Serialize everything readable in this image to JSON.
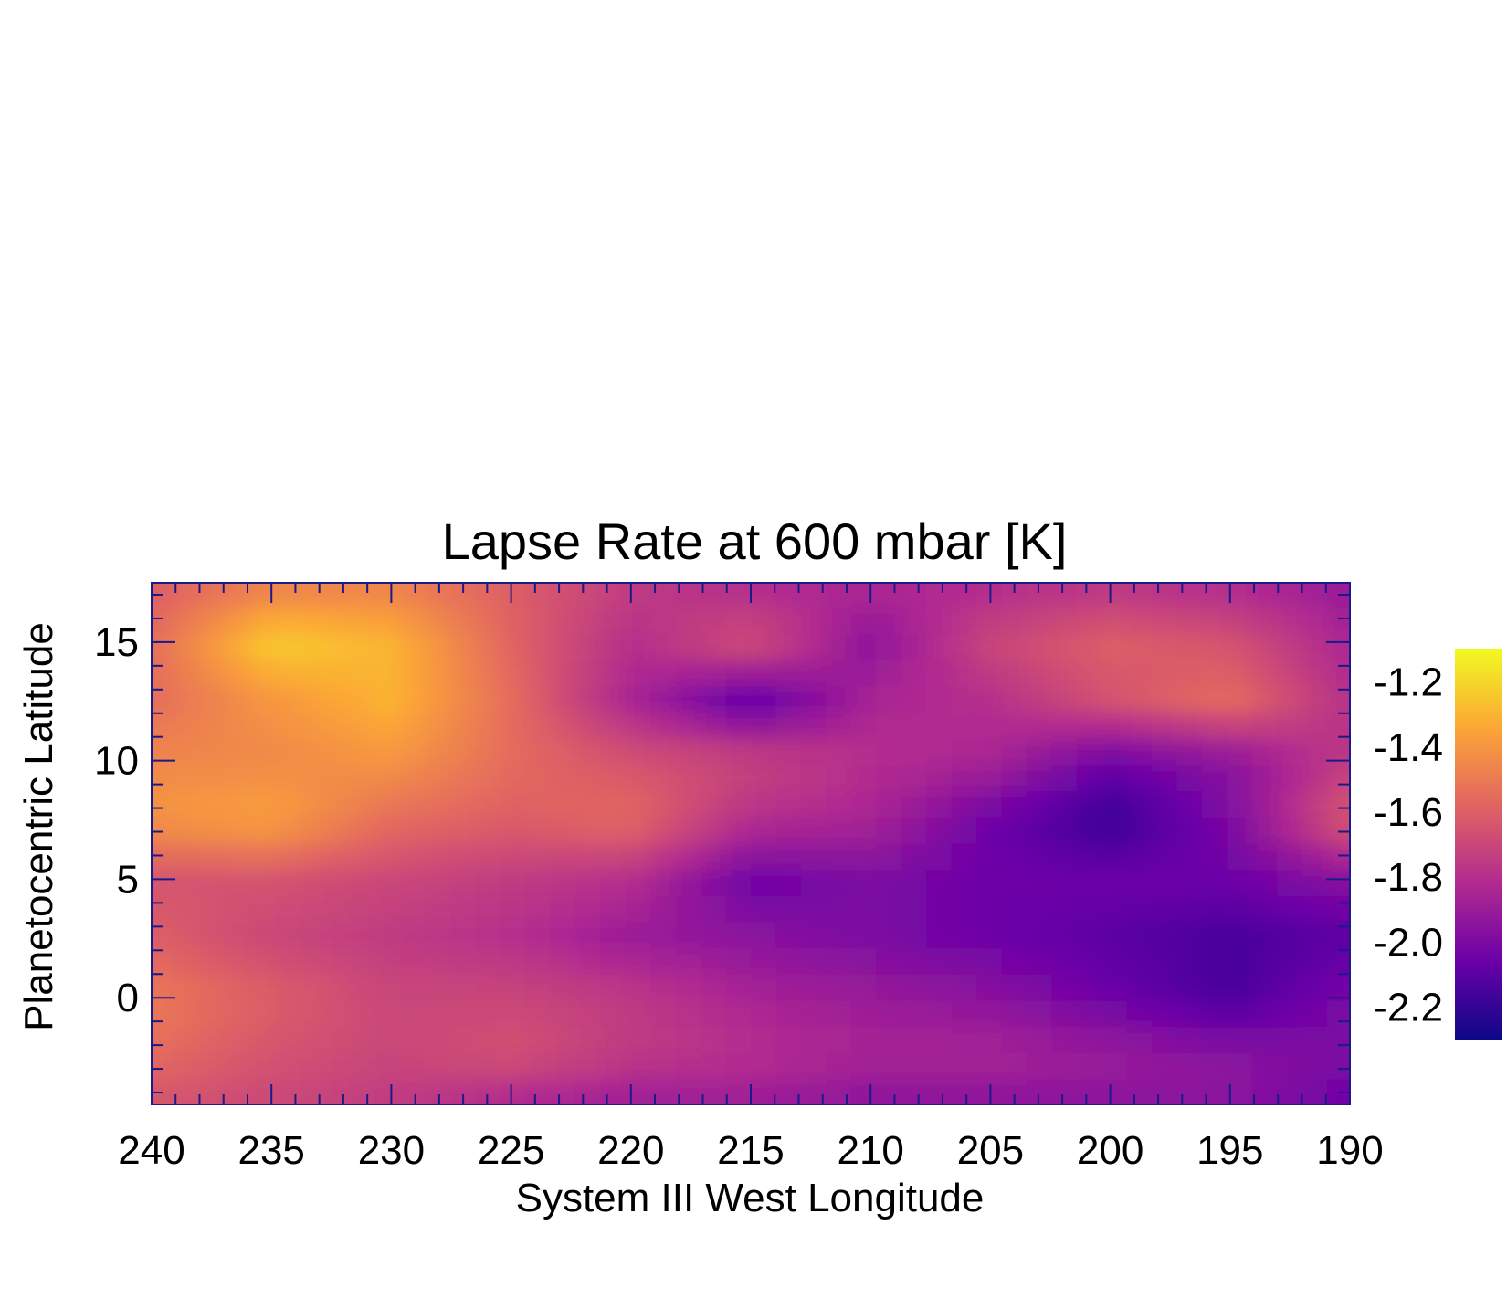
{
  "chart_data": {
    "type": "heatmap",
    "title": "Lapse Rate at 600 mbar [K]",
    "xlabel": "System III West Longitude",
    "ylabel": "Planetocentric Latitude",
    "xlim": [
      240,
      190
    ],
    "ylim": [
      -4.5,
      17.5
    ],
    "x_ticks": [
      240,
      235,
      230,
      225,
      220,
      215,
      210,
      205,
      200,
      195,
      190
    ],
    "x_tick_labels": [
      "240",
      "235",
      "230",
      "225",
      "220",
      "215",
      "210",
      "205",
      "200",
      "195",
      "190"
    ],
    "y_ticks": [
      0,
      5,
      10,
      15
    ],
    "y_tick_labels": [
      "0",
      "5",
      "10",
      "15"
    ],
    "colorbar": {
      "range": [
        -2.3,
        -1.1
      ],
      "ticks": [
        -1.2,
        -1.4,
        -1.6,
        -1.8,
        -2.0,
        -2.2
      ],
      "tick_labels": [
        "-1.2",
        "-1.4",
        "-1.6",
        "-1.8",
        "-2.0",
        "-2.2"
      ],
      "colormap": "plasma-like",
      "colors": [
        "#0d0887",
        "#6a00a8",
        "#b12a90",
        "#e16462",
        "#fca636",
        "#f0f921"
      ]
    },
    "grid": false,
    "x": [
      240,
      235,
      230,
      225,
      220,
      215,
      210,
      205,
      200,
      195,
      190
    ],
    "y": [
      17,
      15,
      12.5,
      10,
      7.5,
      5,
      2.5,
      0,
      -2.5,
      -4.5
    ],
    "z": [
      [
        -1.6,
        -1.45,
        -1.45,
        -1.6,
        -1.75,
        -1.8,
        -1.85,
        -1.8,
        -1.75,
        -1.8,
        -1.9
      ],
      [
        -1.55,
        -1.22,
        -1.3,
        -1.58,
        -1.8,
        -1.65,
        -1.95,
        -1.7,
        -1.6,
        -1.65,
        -1.85
      ],
      [
        -1.55,
        -1.4,
        -1.3,
        -1.55,
        -1.85,
        -2.1,
        -1.85,
        -1.8,
        -1.65,
        -1.55,
        -1.8
      ],
      [
        -1.45,
        -1.45,
        -1.4,
        -1.55,
        -1.65,
        -1.7,
        -1.8,
        -1.85,
        -2.05,
        -1.95,
        -1.75
      ],
      [
        -1.4,
        -1.35,
        -1.55,
        -1.6,
        -1.55,
        -1.8,
        -1.85,
        -2.05,
        -2.2,
        -2.0,
        -1.6
      ],
      [
        -1.65,
        -1.65,
        -1.7,
        -1.75,
        -1.8,
        -2.05,
        -2.0,
        -2.05,
        -2.05,
        -2.05,
        -1.95
      ],
      [
        -1.6,
        -1.7,
        -1.75,
        -1.8,
        -1.9,
        -1.95,
        -2.0,
        -2.05,
        -2.1,
        -2.15,
        -2.1
      ],
      [
        -1.5,
        -1.6,
        -1.7,
        -1.7,
        -1.75,
        -1.85,
        -1.9,
        -1.95,
        -2.05,
        -2.15,
        -2.0
      ],
      [
        -1.55,
        -1.65,
        -1.7,
        -1.65,
        -1.75,
        -1.8,
        -1.85,
        -1.85,
        -1.9,
        -1.95,
        -2.0
      ],
      [
        -1.65,
        -1.7,
        -1.75,
        -1.85,
        -1.9,
        -1.9,
        -1.95,
        -1.95,
        -1.95,
        -1.95,
        -2.05
      ]
    ]
  }
}
